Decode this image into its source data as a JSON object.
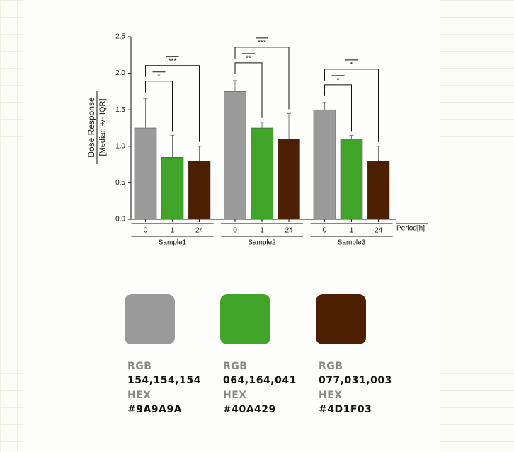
{
  "chart_data": {
    "type": "bar",
    "ylabel": "Dose Response",
    "ylabel2": "[Median +/- IQR]",
    "xlabel": "Period[h]",
    "categories": [
      "Sample1",
      "Sample2",
      "Sample3"
    ],
    "series": [
      {
        "name": "0",
        "color": "#9A9A9A",
        "values": [
          1.25,
          1.75,
          1.5
        ],
        "errors": [
          0.4,
          0.15,
          0.1
        ]
      },
      {
        "name": "1",
        "color": "#40A429",
        "values": [
          0.85,
          1.25,
          1.1
        ],
        "errors": [
          0.3,
          0.08,
          0.05
        ],
        "significance": [
          "*",
          "**",
          "*"
        ]
      },
      {
        "name": "24",
        "color": "#4D1F03",
        "values": [
          0.8,
          1.1,
          0.8
        ],
        "errors": [
          0.2,
          0.35,
          0.2
        ],
        "significance": [
          "***",
          "***",
          "*"
        ]
      }
    ],
    "ylim": [
      0,
      2.5
    ],
    "yticks": [
      {
        "value": 0,
        "label": "0.0"
      },
      {
        "value": 0.5,
        "label": "0.5"
      },
      {
        "value": 1,
        "label": "1.0"
      },
      {
        "value": 1.5,
        "label": "1.5"
      },
      {
        "value": 2,
        "label": "2.0"
      },
      {
        "value": 2.5,
        "label": "2.5"
      }
    ]
  },
  "palette": [
    {
      "rgb_label": "RGB",
      "rgb": "154,154,154",
      "hex_label": "HEX",
      "hex": "#9A9A9A"
    },
    {
      "rgb_label": "RGB",
      "rgb": "064,164,041",
      "hex_label": "HEX",
      "hex": "#40A429"
    },
    {
      "rgb_label": "RGB",
      "rgb": "077,031,003",
      "hex_label": "HEX",
      "hex": "#4D1F03"
    }
  ]
}
